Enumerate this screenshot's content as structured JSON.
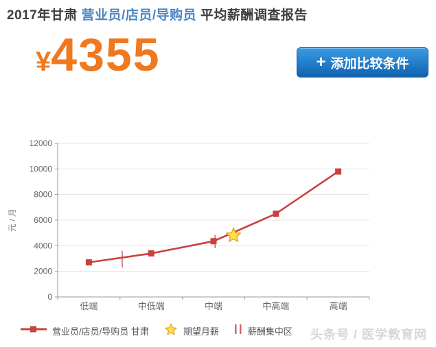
{
  "header": {
    "title_prefix": "2017年甘肃 ",
    "title_highlight": "营业员/店员/导购员",
    "title_suffix": " 平均薪酬调查报告",
    "highlight_color": "#4a86c6",
    "text_color": "#3d3d3d"
  },
  "summary": {
    "currency_symbol": "¥",
    "average_salary": "4355",
    "accent_color": "#f0781e"
  },
  "compare_button": {
    "plus": "+",
    "label": "添加比较条件",
    "bg_top": "#3b9ae2",
    "bg_bottom": "#1161ae",
    "border_color": "#0d57a0"
  },
  "chart_data": {
    "type": "line",
    "title": "",
    "categories": [
      "低端",
      "中低端",
      "中端",
      "中高端",
      "高端"
    ],
    "series": [
      {
        "name": "营业员/店员/导购员 甘肃",
        "values": [
          2700,
          3400,
          4355,
          6500,
          9800
        ],
        "color": "#c9413f",
        "marker": "square"
      }
    ],
    "expected_salary": {
      "label": "期望月薪",
      "value": 4800,
      "x_frac": 0.564,
      "marker": "star",
      "fill": "#ffe24d",
      "stroke": "#e8a61c"
    },
    "salary_ranges": {
      "label": "薪酬集中区",
      "color": "#cf6a68",
      "items": [
        {
          "x_frac": 0.207,
          "low": 2300,
          "high": 3600
        },
        {
          "x_frac": 0.505,
          "low": 3800,
          "high": 4850
        }
      ]
    },
    "xlabel": "",
    "ylabel": "元 / 月",
    "ylim": [
      0,
      12000
    ],
    "ytick_step": 2000,
    "yticks": [
      "0",
      "2000",
      "4000",
      "6000",
      "8000",
      "10000",
      "12000"
    ],
    "grid": true,
    "legend_position": "bottom",
    "axis_color": "#9a9a9a",
    "grid_color": "#e3e3e3",
    "tick_label_color": "#666666",
    "ylabel_color": "#888888"
  },
  "legend": {
    "items": [
      {
        "label": "营业员/店员/导购员 甘肃",
        "symbol": "line-square"
      },
      {
        "label": "期望月薪",
        "symbol": "star"
      },
      {
        "label": "薪酬集中区",
        "symbol": "range-bars"
      }
    ]
  },
  "watermark": {
    "text": "头条号 / 医学教育网",
    "color": "#d7d7d7"
  }
}
